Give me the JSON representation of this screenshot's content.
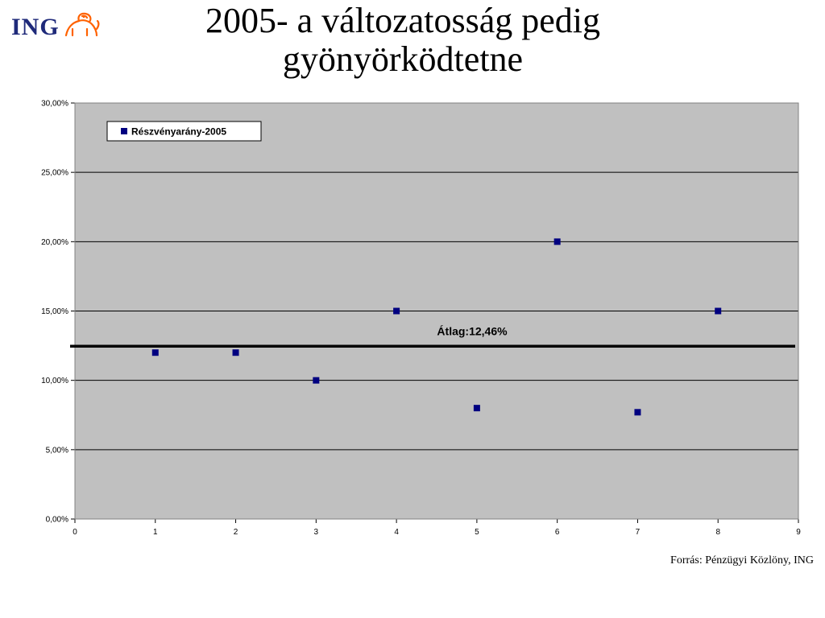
{
  "logo": {
    "text": "ING",
    "icon": "lion-icon",
    "color": "#1f2a7a",
    "lion_color": "#ff6200"
  },
  "title": {
    "line1": "2005- a változatosság pedig",
    "line2": "gyönyörködtetne"
  },
  "source": "Forrás: Pénzügyi Közlöny, ING",
  "chart_data": {
    "type": "scatter",
    "title": "",
    "xlabel": "",
    "ylabel": "",
    "xlim": [
      0,
      9
    ],
    "ylim": [
      0,
      0.3
    ],
    "x_ticks": [
      "0",
      "1",
      "2",
      "3",
      "4",
      "5",
      "6",
      "7",
      "8",
      "9"
    ],
    "y_ticks": [
      "0,00%",
      "5,00%",
      "10,00%",
      "15,00%",
      "20,00%",
      "25,00%",
      "30,00%"
    ],
    "grid": true,
    "legend_position": "top-left",
    "plot_background": "#c0c0c0",
    "marker_color": "#000080",
    "series": [
      {
        "name": "Részvényarány-2005",
        "x": [
          1,
          2,
          3,
          4,
          5,
          6,
          7,
          8
        ],
        "y": [
          0.12,
          0.12,
          0.1,
          0.15,
          0.08,
          0.2,
          0.077,
          0.15
        ]
      }
    ],
    "reference_line": {
      "value": 0.1246,
      "label": "Átlag:12,46%",
      "color": "#000000"
    }
  }
}
